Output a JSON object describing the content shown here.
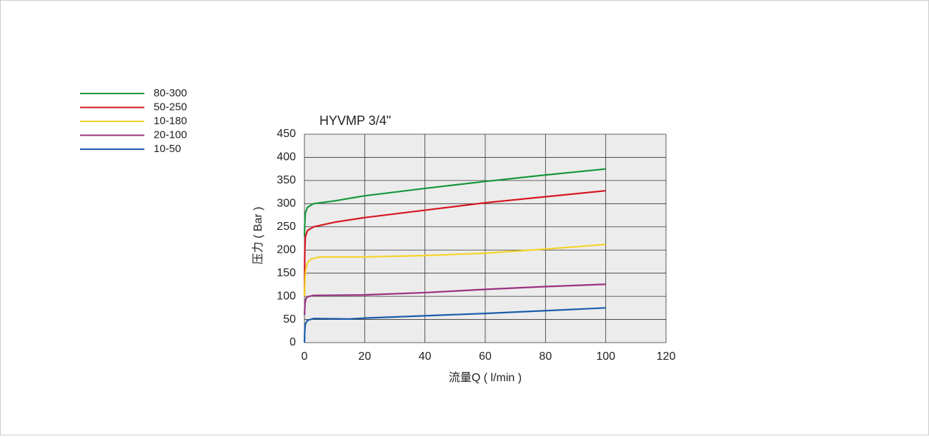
{
  "chart_data": {
    "type": "line",
    "title": "HYVMP 3/4\"",
    "x_label": "流量Q ( l/min )",
    "y_label": "压力 ( Bar )",
    "xlim": [
      0,
      120
    ],
    "xticks": [
      0,
      20,
      40,
      60,
      80,
      100,
      120
    ],
    "ylim": [
      0,
      450
    ],
    "yticks": [
      0,
      50,
      100,
      150,
      200,
      250,
      300,
      350,
      400,
      450
    ],
    "grid": true,
    "legend": "top-left",
    "series": [
      {
        "name": "80-300",
        "color": "#16973c",
        "x": [
          0,
          0.1,
          0.3,
          1,
          3,
          10,
          20,
          40,
          60,
          80,
          100
        ],
        "values": [
          230,
          255,
          280,
          292,
          300,
          306,
          317,
          333,
          348,
          362,
          375
        ]
      },
      {
        "name": "50-250",
        "color": "#d4161f",
        "x": [
          0,
          0.1,
          0.3,
          1,
          3,
          10,
          20,
          40,
          60,
          80,
          100
        ],
        "values": [
          100,
          190,
          228,
          242,
          250,
          260,
          270,
          286,
          302,
          315,
          328
        ]
      },
      {
        "name": "10-180",
        "color": "#f5d327",
        "x": [
          0,
          0.2,
          0.5,
          1,
          2,
          5,
          20,
          40,
          60,
          80,
          100
        ],
        "values": [
          100,
          140,
          160,
          172,
          180,
          185,
          185,
          188,
          193,
          202,
          212
        ]
      },
      {
        "name": "20-100",
        "color": "#9a3080",
        "x": [
          0,
          0.2,
          0.5,
          1,
          3,
          20,
          40,
          60,
          80,
          100
        ],
        "values": [
          60,
          85,
          95,
          99,
          102,
          103,
          108,
          115,
          121,
          126
        ]
      },
      {
        "name": "10-50",
        "color": "#1a5cac",
        "x": [
          0,
          0.1,
          0.3,
          1,
          3,
          15,
          20,
          40,
          60,
          80,
          100
        ],
        "values": [
          0,
          25,
          40,
          48,
          52,
          51,
          53,
          58,
          63,
          69,
          75
        ]
      }
    ]
  }
}
